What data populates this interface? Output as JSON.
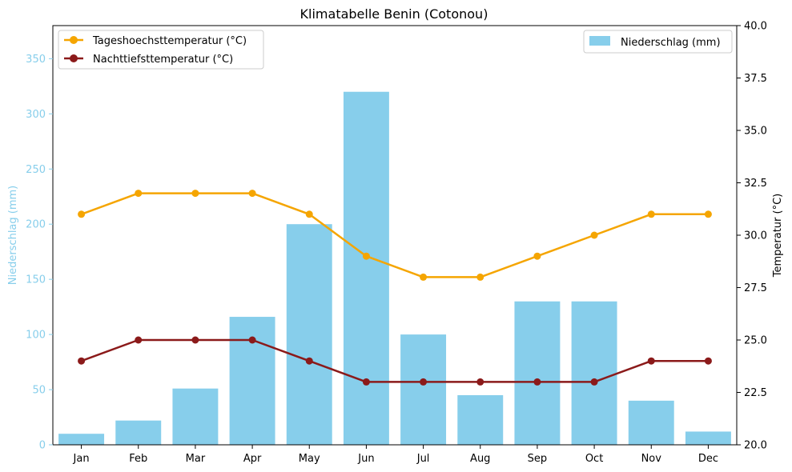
{
  "chart_data": {
    "type": "bar+line",
    "title": "Klimatabelle Benin (Cotonou)",
    "categories": [
      "Jan",
      "Feb",
      "Mar",
      "Apr",
      "May",
      "Jun",
      "Jul",
      "Aug",
      "Sep",
      "Oct",
      "Nov",
      "Dec"
    ],
    "left_axis": {
      "label": "Niederschlag (mm)",
      "ylim": [
        0,
        380
      ],
      "ticks": [
        0,
        50,
        100,
        150,
        200,
        250,
        300,
        350
      ],
      "color": "#87CEEB"
    },
    "right_axis": {
      "label": "Temperatur (°C)",
      "ylim": [
        20,
        40
      ],
      "ticks": [
        "20.0",
        "22.5",
        "25.0",
        "27.5",
        "30.0",
        "32.5",
        "35.0",
        "37.5",
        "40.0"
      ]
    },
    "bar_series": {
      "name": "Niederschlag (mm)",
      "color": "#87CEEB",
      "values": [
        10,
        22,
        51,
        116,
        200,
        320,
        100,
        45,
        130,
        130,
        40,
        12
      ]
    },
    "line_series": [
      {
        "name": "Tageshoechsttemperatur (°C)",
        "color": "#F5A500",
        "values": [
          31,
          32,
          32,
          32,
          31,
          29,
          28,
          28,
          29,
          30,
          31,
          31
        ]
      },
      {
        "name": "Nachttiefsttemperatur (°C)",
        "color": "#8B1A1A",
        "values": [
          24,
          25,
          25,
          25,
          24,
          23,
          23,
          23,
          23,
          23,
          24,
          24
        ]
      }
    ],
    "legend_left_position": "top-left",
    "legend_right_position": "top-right",
    "grid": false
  }
}
